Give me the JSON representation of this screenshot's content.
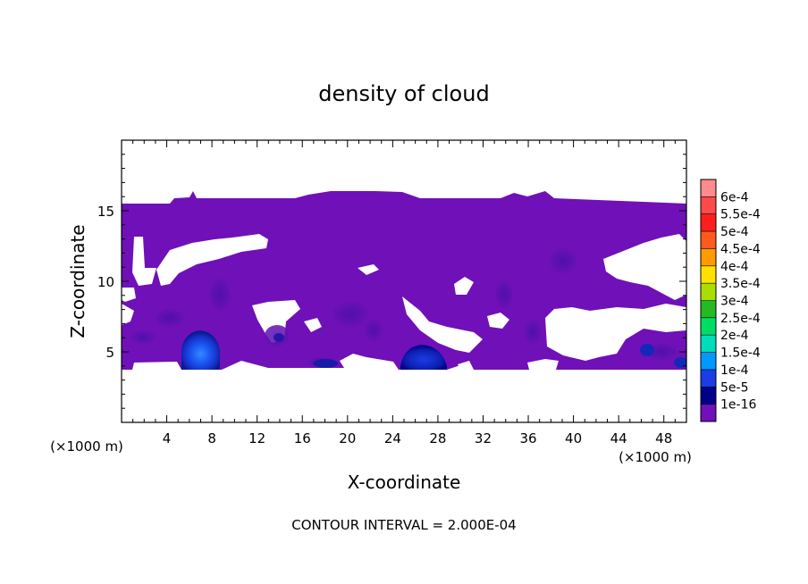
{
  "chart_data": {
    "type": "heatmap",
    "title": "density of cloud",
    "xlabel": "X-coordinate",
    "ylabel": "Z-coordinate",
    "x_unit_label": "(×1000 m)",
    "y_unit_label": "(×1000 m)",
    "footer": "CONTOUR INTERVAL = 2.000E-04",
    "xlim": [
      0,
      50
    ],
    "ylim": [
      0,
      20
    ],
    "xticks": [
      4,
      8,
      12,
      16,
      20,
      24,
      28,
      32,
      36,
      40,
      44,
      48
    ],
    "yticks": [
      5,
      10,
      15
    ],
    "grid": false,
    "colorbar": {
      "labels": [
        "6e-4",
        "5.5e-4",
        "5e-4",
        "4.5e-4",
        "4e-4",
        "3.5e-4",
        "3e-4",
        "2.5e-4",
        "2e-4",
        "1.5e-4",
        "1e-4",
        "5e-5",
        "1e-16"
      ],
      "colors": [
        "#ff8c8c",
        "#ff4a4a",
        "#ff1e1e",
        "#ff5a1e",
        "#ff9b00",
        "#ffe000",
        "#aadd00",
        "#22bb22",
        "#00dd66",
        "#00ddbb",
        "#0099ff",
        "#1c3ce6",
        "#000088",
        "#7010b8"
      ]
    },
    "cloud_region": {
      "z_range": [
        3.8,
        15.5
      ],
      "fill_level": "1e-16",
      "max_value_regions": [
        {
          "x_center": 7,
          "z_center": 5.2,
          "level": "1e-4"
        },
        {
          "x_center": 27,
          "z_center": 4.9,
          "level": "5e-5"
        },
        {
          "x_center": 18,
          "z_center": 4.4,
          "level": "5e-5"
        },
        {
          "x_center": 46,
          "z_center": 5.2,
          "level": "5e-5"
        },
        {
          "x_center": 49.5,
          "z_center": 4.6,
          "level": "5e-5"
        }
      ]
    }
  }
}
